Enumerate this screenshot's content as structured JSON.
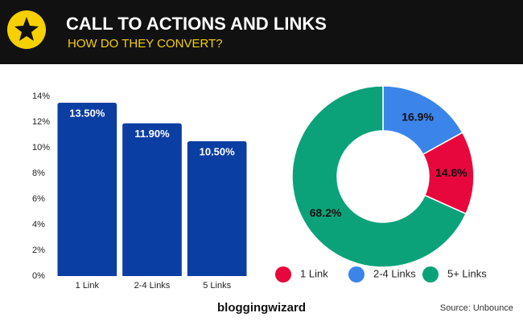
{
  "header": {
    "title": "CALL TO ACTIONS AND LINKS",
    "subtitle": "HOW DO THEY CONVERT?"
  },
  "footer": {
    "brand": "bloggingwizard",
    "source": "Source: Unbounce"
  },
  "chart_data": [
    {
      "type": "bar",
      "categories": [
        "1 Link",
        "2-4 Links",
        "5 Links"
      ],
      "values": [
        13.5,
        11.9,
        10.5
      ],
      "value_labels": [
        "13.50%",
        "11.90%",
        "10.50%"
      ],
      "color": "#0b3ea3",
      "ylim": [
        0,
        14
      ],
      "yticks": [
        {
          "value": 0,
          "label": "0%"
        },
        {
          "value": 2,
          "label": "2%"
        },
        {
          "value": 4,
          "label": "4%"
        },
        {
          "value": 6,
          "label": "6%"
        },
        {
          "value": 8,
          "label": "8%"
        },
        {
          "value": 10,
          "label": "10%"
        },
        {
          "value": 12,
          "label": "12%"
        },
        {
          "value": 14,
          "label": "14%"
        }
      ],
      "grid": false
    },
    {
      "type": "donut",
      "categories": [
        "1 Link",
        "2-4 Links",
        "5+ Links"
      ],
      "values": [
        14.8,
        16.9,
        68.2
      ],
      "value_labels": [
        "14.8%",
        "16.9%",
        "68.2%"
      ],
      "colors": [
        "#e8073d",
        "#3b84ea",
        "#0ba27a"
      ],
      "legend": "bottom"
    }
  ]
}
